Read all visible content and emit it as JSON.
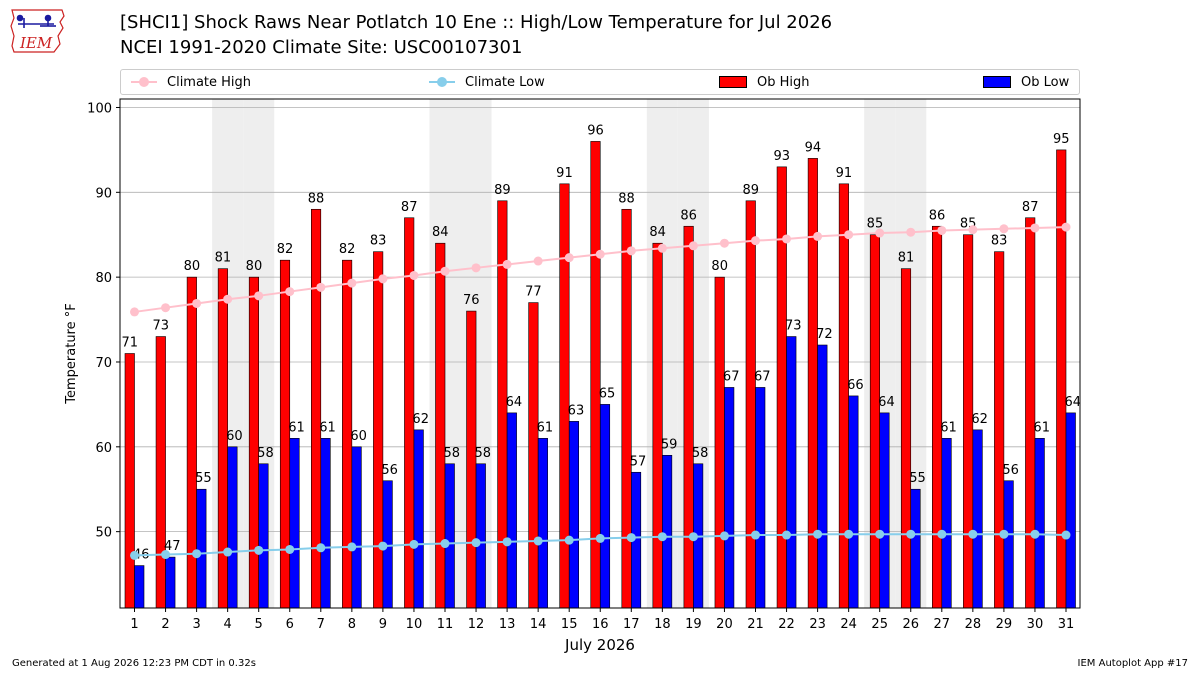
{
  "title_line1": "[SHCI1] Shock Raws Near Potlatch 10 Ene :: High/Low Temperature for Jul 2026",
  "title_line2": "NCEI 1991-2020 Climate Site: USC00107301",
  "logo_text": "IEM",
  "footer_left": "Generated at 1 Aug 2026 12:23 PM CDT in 0.32s",
  "footer_right": "IEM Autoplot App #17",
  "colors": {
    "ob_high": "#ff0000",
    "ob_low": "#0000ff",
    "climate_high": "#ffc0cb",
    "climate_low": "#87ceeb",
    "weekend_band": "#eeeeee",
    "grid": "#b0b0b0",
    "logo": "#cc2222"
  },
  "legend": {
    "climate_high": "Climate High",
    "climate_low": "Climate Low",
    "ob_high": "Ob High",
    "ob_low": "Ob Low"
  },
  "chart_data": {
    "type": "bar",
    "title": "[SHCI1] Shock Raws Near Potlatch 10 Ene :: High/Low Temperature for Jul 2026",
    "xlabel": "July 2026",
    "ylabel": "Temperature °F",
    "ylim": [
      41,
      101
    ],
    "yticks": [
      50,
      60,
      70,
      80,
      90,
      100
    ],
    "grid": true,
    "legend_position": "top",
    "shaded_days": [
      4,
      5,
      11,
      12,
      18,
      19,
      25,
      26
    ],
    "categories": [
      "1",
      "2",
      "3",
      "4",
      "5",
      "6",
      "7",
      "8",
      "9",
      "10",
      "11",
      "12",
      "13",
      "14",
      "15",
      "16",
      "17",
      "18",
      "19",
      "20",
      "21",
      "22",
      "23",
      "24",
      "25",
      "26",
      "27",
      "28",
      "29",
      "30",
      "31"
    ],
    "series": [
      {
        "name": "Ob High",
        "kind": "bar",
        "values": [
          71,
          73,
          80,
          81,
          80,
          82,
          88,
          82,
          83,
          87,
          84,
          76,
          89,
          77,
          91,
          96,
          88,
          84,
          86,
          80,
          89,
          93,
          94,
          91,
          85,
          81,
          86,
          85,
          83,
          87,
          95
        ]
      },
      {
        "name": "Ob Low",
        "kind": "bar",
        "values": [
          46,
          47,
          55,
          60,
          58,
          61,
          61,
          60,
          56,
          62,
          58,
          58,
          64,
          61,
          63,
          65,
          57,
          59,
          58,
          67,
          67,
          73,
          72,
          66,
          64,
          55,
          61,
          62,
          56,
          61,
          64
        ]
      },
      {
        "name": "Climate High",
        "kind": "line",
        "values": [
          75.9,
          76.4,
          76.9,
          77.4,
          77.8,
          78.3,
          78.8,
          79.3,
          79.8,
          80.2,
          80.7,
          81.1,
          81.5,
          81.9,
          82.3,
          82.7,
          83.1,
          83.4,
          83.7,
          84.0,
          84.3,
          84.5,
          84.8,
          85.0,
          85.2,
          85.3,
          85.5,
          85.6,
          85.7,
          85.8,
          85.9
        ]
      },
      {
        "name": "Climate Low",
        "kind": "line",
        "values": [
          47.2,
          47.3,
          47.4,
          47.6,
          47.8,
          47.9,
          48.1,
          48.2,
          48.3,
          48.5,
          48.6,
          48.7,
          48.8,
          48.9,
          49.0,
          49.2,
          49.3,
          49.4,
          49.4,
          49.5,
          49.6,
          49.6,
          49.7,
          49.7,
          49.7,
          49.7,
          49.7,
          49.7,
          49.7,
          49.7,
          49.6
        ]
      }
    ]
  }
}
